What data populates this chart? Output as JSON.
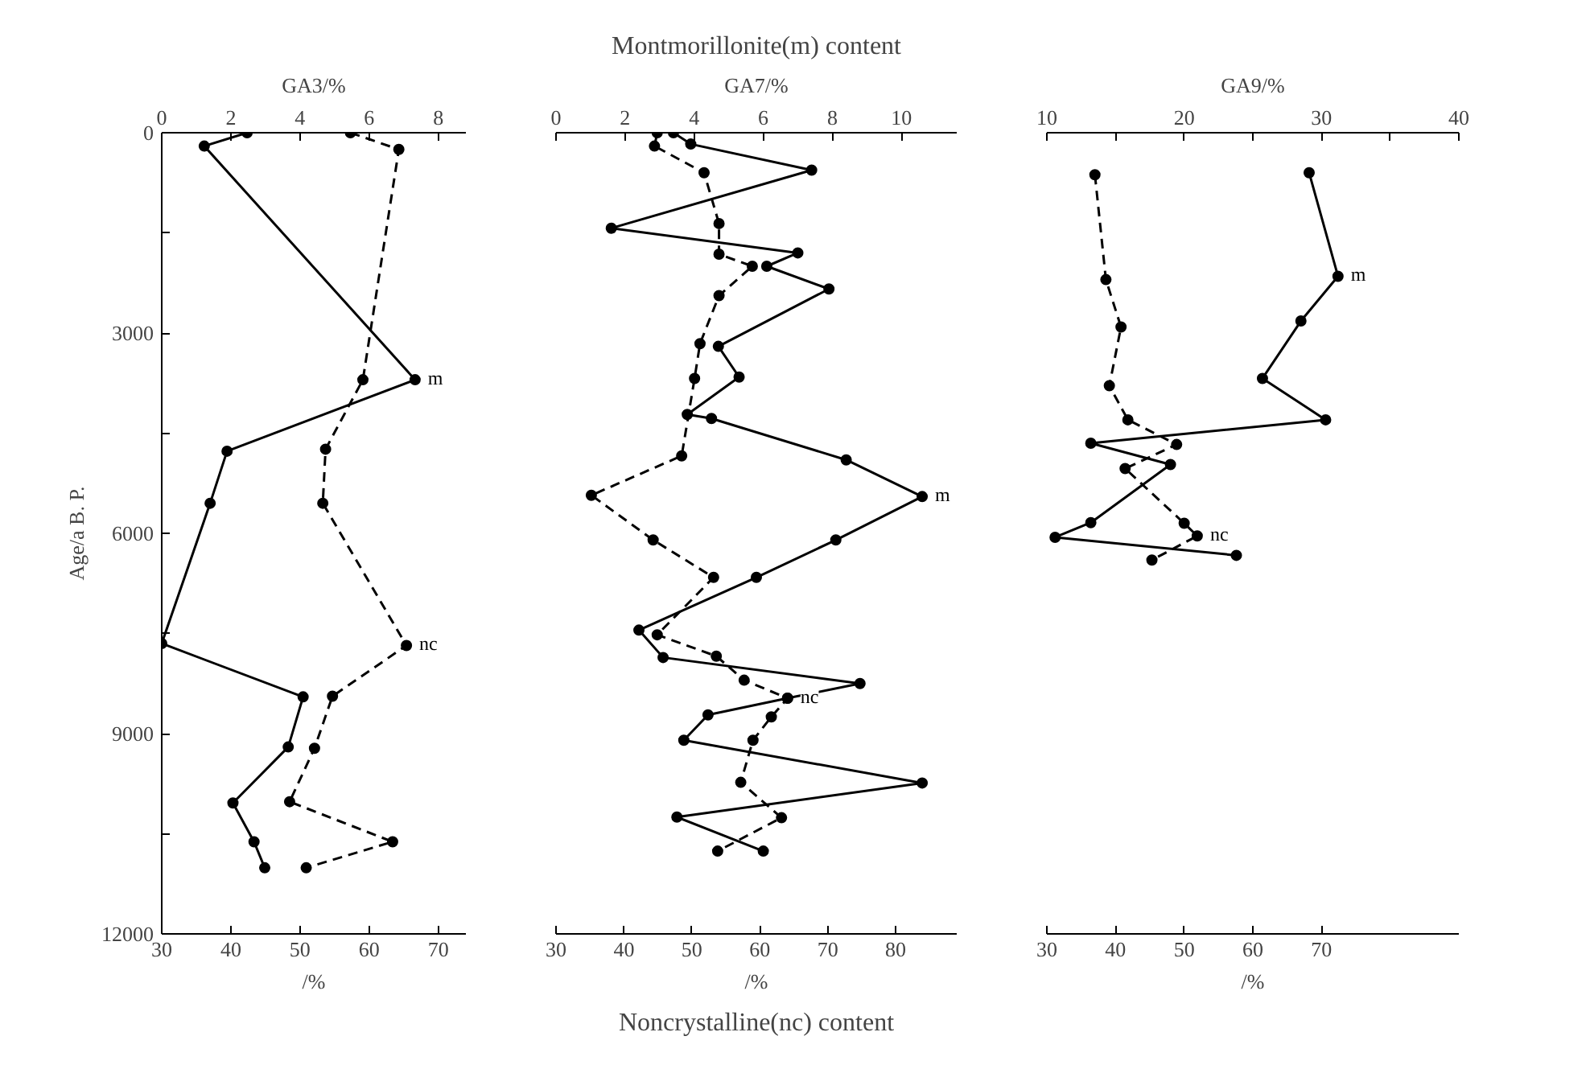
{
  "chart_data": [
    {
      "type": "line",
      "x2label": "GA3/%",
      "xlabel": "/%",
      "ylabel": "Age/a B. P.",
      "xlim": [
        30,
        74
      ],
      "xticks": [
        30,
        40,
        50,
        60,
        70
      ],
      "x2lim": [
        0,
        8.8
      ],
      "x2ticks": [
        0,
        2,
        4,
        6,
        8
      ],
      "ylim": [
        12000,
        0
      ],
      "yticks": [
        0,
        {
          "value": 1500,
          "label": null
        },
        3000,
        {
          "value": 4500,
          "label": null
        },
        6000,
        {
          "value": 7500,
          "label": null
        },
        9000,
        {
          "value": 10500,
          "label": null
        },
        12000
      ],
      "marker": "circle",
      "series": [
        {
          "name": "m",
          "color": "#000000",
          "axis": "x2",
          "line_style": "solid",
          "x": [
            2.47,
            1.23,
            7.33,
            1.89,
            1.4,
            0,
            4.09,
            3.66,
            2.06,
            2.67,
            2.98
          ],
          "values": [
            0,
            200,
            3700,
            4770,
            5550,
            7650,
            8450,
            9200,
            10040,
            10620,
            11010
          ]
        },
        {
          "name": "nc",
          "color": "#000000",
          "line_style": "dashed",
          "x": [
            57.3,
            64.3,
            59.1,
            53.7,
            53.3,
            65.4,
            54.7,
            52.1,
            48.5,
            63.4,
            50.9
          ],
          "values": [
            0,
            250,
            3700,
            4740,
            5550,
            7680,
            8440,
            9220,
            10020,
            10620,
            11010
          ]
        }
      ]
    },
    {
      "type": "line",
      "title": "Montmorillonite(m) content",
      "x2label": "GA7/%",
      "xlabel": "/%",
      "annotations": [
        "Noncrystalline(nc) content"
      ],
      "xlim": [
        30,
        89
      ],
      "xticks": [
        30,
        40,
        50,
        60,
        70,
        80
      ],
      "x2lim": [
        0,
        11.6
      ],
      "x2ticks": [
        0,
        2,
        4,
        6,
        8,
        10
      ],
      "ylim": [
        12000,
        0
      ],
      "tick_labels": "x",
      "marker": "circle",
      "series": [
        {
          "name": "m",
          "color": "#000000",
          "axis": "x2",
          "line_style": "solid",
          "x": [
            3.4,
            3.9,
            7.4,
            1.6,
            7.0,
            6.1,
            7.9,
            4.7,
            5.3,
            3.8,
            4.5,
            8.4,
            10.6,
            8.1,
            5.8,
            2.4,
            3.1,
            8.8,
            6.7,
            4.4,
            3.7,
            10.6,
            3.5,
            6.0
          ],
          "values": [
            0,
            170,
            560,
            1430,
            1800,
            2000,
            2340,
            3200,
            3660,
            4220,
            4280,
            4900,
            5450,
            6100,
            6660,
            7450,
            7860,
            8250,
            8470,
            8720,
            9100,
            9740,
            10250,
            10760
          ]
        },
        {
          "name": "nc",
          "color": "#000000",
          "line_style": "dashed",
          "x": [
            44.9,
            44.5,
            51.8,
            54.0,
            54.0,
            58.9,
            54.0,
            51.2,
            50.4,
            48.5,
            35.2,
            44.3,
            53.2,
            44.9,
            53.6,
            57.7,
            64.1,
            61.7,
            59.0,
            57.2,
            63.2,
            53.8
          ],
          "values": [
            0,
            200,
            600,
            1360,
            1820,
            2000,
            2440,
            3160,
            3680,
            4840,
            5430,
            6100,
            6660,
            7520,
            7840,
            8200,
            8470,
            8750,
            9100,
            9730,
            10260,
            10760
          ]
        }
      ]
    },
    {
      "type": "line",
      "x2label": "GA9/%",
      "xlabel": "/%",
      "xlim": [
        30,
        90
      ],
      "xticks": [
        30,
        40,
        50,
        60,
        70
      ],
      "x2lim": [
        10,
        40
      ],
      "x2ticks": [
        10,
        {
          "value": 15,
          "label": null
        },
        20,
        {
          "value": 25,
          "label": null
        },
        30,
        {
          "value": 35,
          "label": null
        },
        40
      ],
      "ylim": [
        12000,
        0
      ],
      "tick_labels": "x",
      "marker": "circle",
      "series": [
        {
          "name": "m",
          "color": "#000000",
          "axis": "x2",
          "line_style": "solid",
          "x": [
            29.1,
            31.2,
            28.5,
            25.7,
            30.3,
            13.2,
            19.0,
            13.2,
            10.6,
            23.8
          ],
          "values": [
            600,
            2150,
            2820,
            3680,
            4300,
            4650,
            4970,
            5840,
            6060,
            6330
          ]
        },
        {
          "name": "nc",
          "color": "#000000",
          "line_style": "dashed",
          "x": [
            37.0,
            38.6,
            40.8,
            39.1,
            41.8,
            48.9,
            41.4,
            50.0,
            51.9,
            45.3
          ],
          "values": [
            630,
            2200,
            2910,
            3790,
            4300,
            4670,
            5030,
            5850,
            6040,
            6400
          ]
        }
      ]
    }
  ]
}
